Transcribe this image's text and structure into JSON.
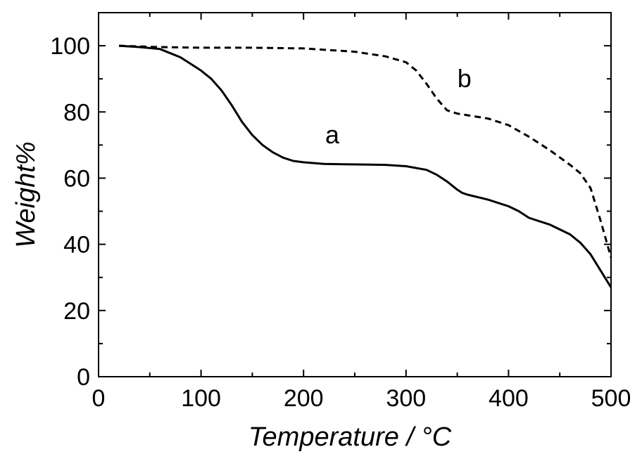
{
  "chart_data": {
    "type": "line",
    "xlabel": "Temperature / °C",
    "ylabel": "Weight%",
    "xlim": [
      0,
      500
    ],
    "ylim": [
      0,
      110
    ],
    "xticks": [
      0,
      100,
      200,
      300,
      400,
      500
    ],
    "yticks": [
      0,
      20,
      40,
      60,
      80,
      100
    ],
    "grid": false,
    "series": [
      {
        "name": "a",
        "style": "solid",
        "x": [
          20,
          40,
          60,
          80,
          100,
          110,
          120,
          130,
          140,
          150,
          160,
          170,
          180,
          190,
          200,
          220,
          240,
          260,
          280,
          300,
          320,
          330,
          340,
          350,
          355,
          360,
          380,
          400,
          410,
          420,
          440,
          460,
          470,
          480,
          490,
          500
        ],
        "y": [
          100,
          99.6,
          99,
          96.5,
          92.5,
          90,
          86.5,
          82,
          77,
          73,
          70,
          67.8,
          66.2,
          65.2,
          64.8,
          64.3,
          64.2,
          64.1,
          64,
          63.6,
          62.5,
          61,
          59,
          56.5,
          55.5,
          55,
          53.5,
          51.5,
          50,
          48,
          46,
          43,
          40.5,
          37,
          32,
          27
        ]
      },
      {
        "name": "b",
        "style": "dashed",
        "x": [
          20,
          60,
          100,
          150,
          200,
          250,
          280,
          300,
          310,
          320,
          330,
          340,
          350,
          360,
          380,
          400,
          420,
          440,
          460,
          470,
          480,
          490,
          500
        ],
        "y": [
          100,
          99.6,
          99.4,
          99.4,
          99.2,
          98.2,
          96.8,
          95,
          92.5,
          88.5,
          84,
          80.5,
          79.5,
          79,
          78,
          76,
          72.5,
          68.5,
          64,
          61.5,
          57,
          47,
          36
        ]
      }
    ],
    "annotations": [
      {
        "text": "a",
        "x": 228,
        "y": 73
      },
      {
        "text": "b",
        "x": 357,
        "y": 90
      }
    ]
  }
}
